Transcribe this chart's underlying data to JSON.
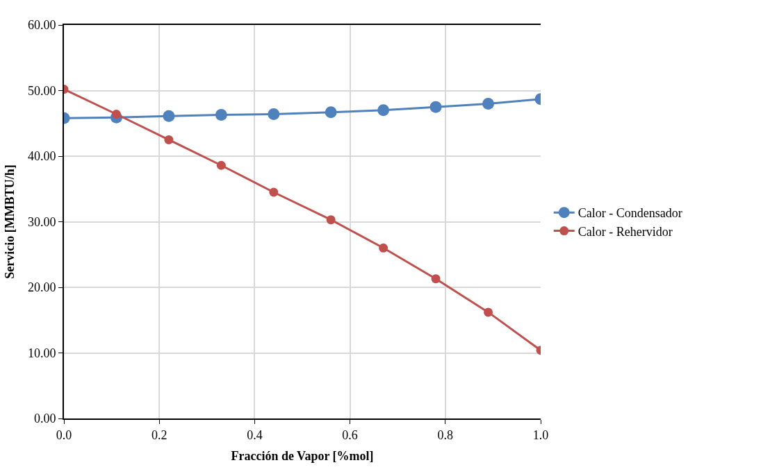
{
  "chart_data": {
    "type": "line",
    "xlabel": "Fracción de Vapor [%mol]",
    "ylabel": "Servicio [MMBTU/h]",
    "x": [
      0,
      0.11,
      0.22,
      0.33,
      0.44,
      0.56,
      0.67,
      0.78,
      0.89,
      1.0
    ],
    "series": [
      {
        "name": "Calor - Condensador",
        "color": "#4f81bd",
        "values": [
          45.8,
          45.9,
          46.1,
          46.3,
          46.4,
          46.7,
          47.0,
          47.5,
          48.0,
          48.7
        ]
      },
      {
        "name": "Calor - Rehervidor",
        "color": "#c0504d",
        "values": [
          50.2,
          46.4,
          42.5,
          38.6,
          34.5,
          30.3,
          26.0,
          21.3,
          16.2,
          10.4
        ]
      }
    ],
    "xlim": [
      0,
      1.0
    ],
    "xticks": [
      {
        "value": 0,
        "label": "0.0"
      },
      0.2,
      0.4,
      0.6,
      0.8,
      {
        "value": 1.0,
        "label": "1.0"
      }
    ],
    "ylim": [
      0,
      60
    ],
    "yticks": [
      {
        "value": 0,
        "label": "0.00"
      },
      {
        "value": 10,
        "label": "10.00"
      },
      {
        "value": 20,
        "label": "20.00"
      },
      {
        "value": 30,
        "label": "30.00"
      },
      {
        "value": 40,
        "label": "40.00"
      },
      {
        "value": 50,
        "label": "50.00"
      },
      {
        "value": 60,
        "label": "60.00"
      }
    ],
    "grid": true,
    "legend": "right",
    "marker": "circle",
    "line_style": "solid"
  }
}
